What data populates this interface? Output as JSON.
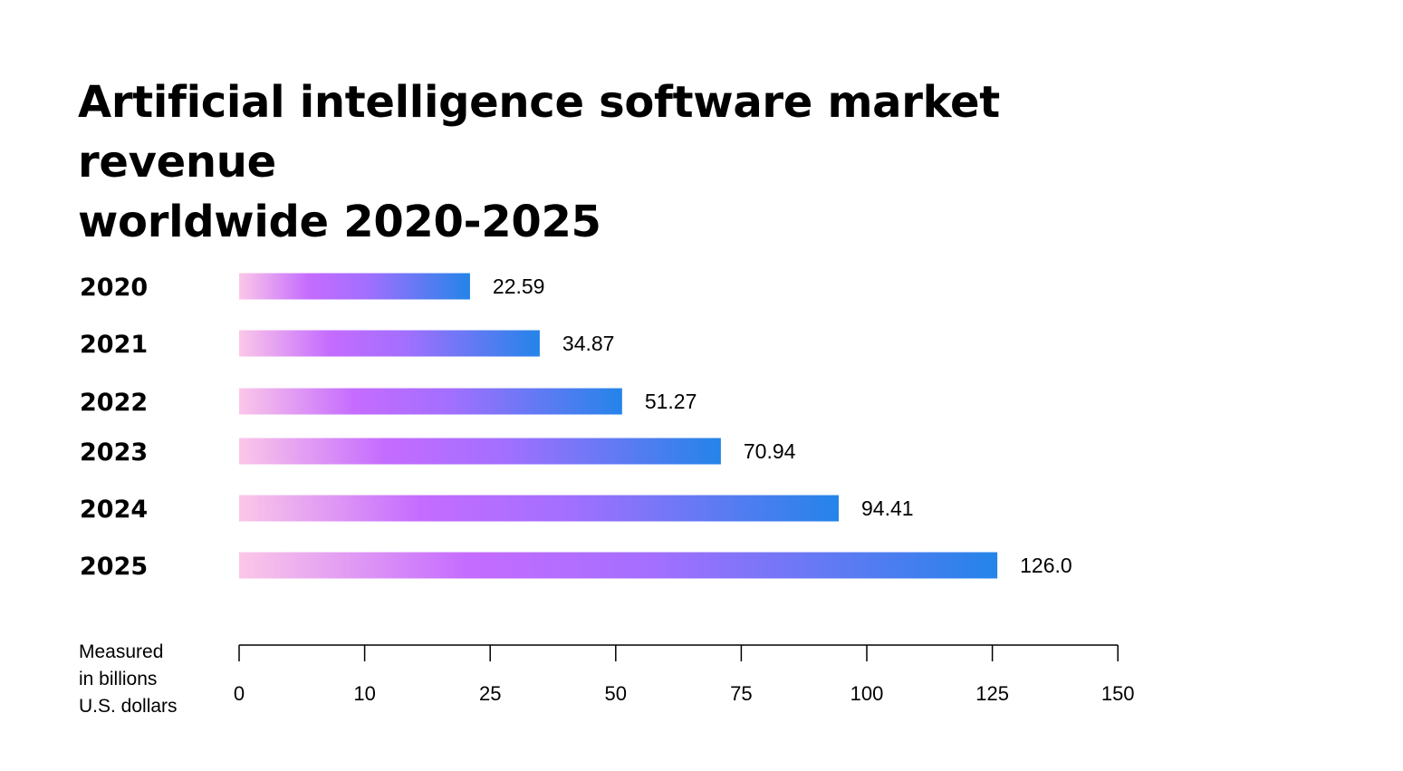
{
  "title_lines": [
    "Artificial intelligence software market revenue",
    "worldwide 2020-2025"
  ],
  "colors": {
    "gradient": [
      "#fbc7e8",
      "#c56cff",
      "#a36fff",
      "#2484e9"
    ],
    "axis": "#000000"
  },
  "chart_data": {
    "type": "bar",
    "orientation": "horizontal",
    "categories": [
      "2020",
      "2021",
      "2022",
      "2023",
      "2024",
      "2025"
    ],
    "values": [
      22.59,
      34.87,
      51.27,
      70.94,
      94.41,
      126.0
    ],
    "value_labels": [
      "22.59",
      "34.87",
      "51.27",
      "70.94",
      "94.41",
      "126.0"
    ],
    "xticks": [
      "0",
      "10",
      "25",
      "50",
      "75",
      "100",
      "125",
      "150"
    ],
    "xlabel_lines": [
      "Measured",
      "in billions",
      "U.S. dollars"
    ],
    "xlim": [
      0,
      150
    ],
    "grid": false,
    "legend": "none"
  }
}
